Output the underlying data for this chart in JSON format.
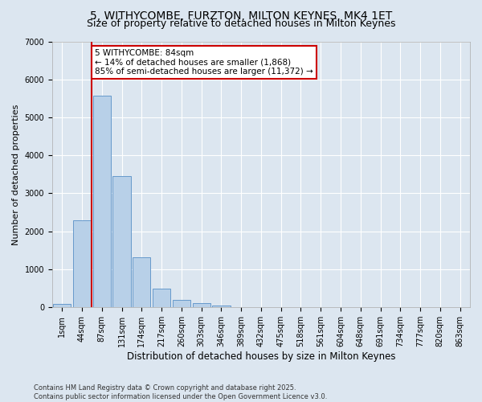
{
  "title": "5, WITHYCOMBE, FURZTON, MILTON KEYNES, MK4 1ET",
  "subtitle": "Size of property relative to detached houses in Milton Keynes",
  "xlabel": "Distribution of detached houses by size in Milton Keynes",
  "ylabel": "Number of detached properties",
  "categories": [
    "1sqm",
    "44sqm",
    "87sqm",
    "131sqm",
    "174sqm",
    "217sqm",
    "260sqm",
    "303sqm",
    "346sqm",
    "389sqm",
    "432sqm",
    "475sqm",
    "518sqm",
    "561sqm",
    "604sqm",
    "648sqm",
    "691sqm",
    "734sqm",
    "777sqm",
    "820sqm",
    "863sqm"
  ],
  "values": [
    90,
    2300,
    5580,
    3450,
    1320,
    490,
    195,
    100,
    55,
    10,
    0,
    0,
    0,
    0,
    0,
    0,
    0,
    0,
    0,
    0,
    0
  ],
  "bar_color": "#b8d0e8",
  "bar_edge_color": "#6699cc",
  "vline_color": "#cc0000",
  "annotation_text": "5 WITHYCOMBE: 84sqm\n← 14% of detached houses are smaller (1,868)\n85% of semi-detached houses are larger (11,372) →",
  "annotation_box_facecolor": "#ffffff",
  "annotation_box_edgecolor": "#cc0000",
  "ylim": [
    0,
    7000
  ],
  "yticks": [
    0,
    1000,
    2000,
    3000,
    4000,
    5000,
    6000,
    7000
  ],
  "background_color": "#dce6f0",
  "grid_color": "#ffffff",
  "footer_text": "Contains HM Land Registry data © Crown copyright and database right 2025.\nContains public sector information licensed under the Open Government Licence v3.0.",
  "title_fontsize": 10,
  "subtitle_fontsize": 9,
  "xlabel_fontsize": 8.5,
  "ylabel_fontsize": 8,
  "tick_fontsize": 7,
  "annotation_fontsize": 7.5,
  "footer_fontsize": 6
}
